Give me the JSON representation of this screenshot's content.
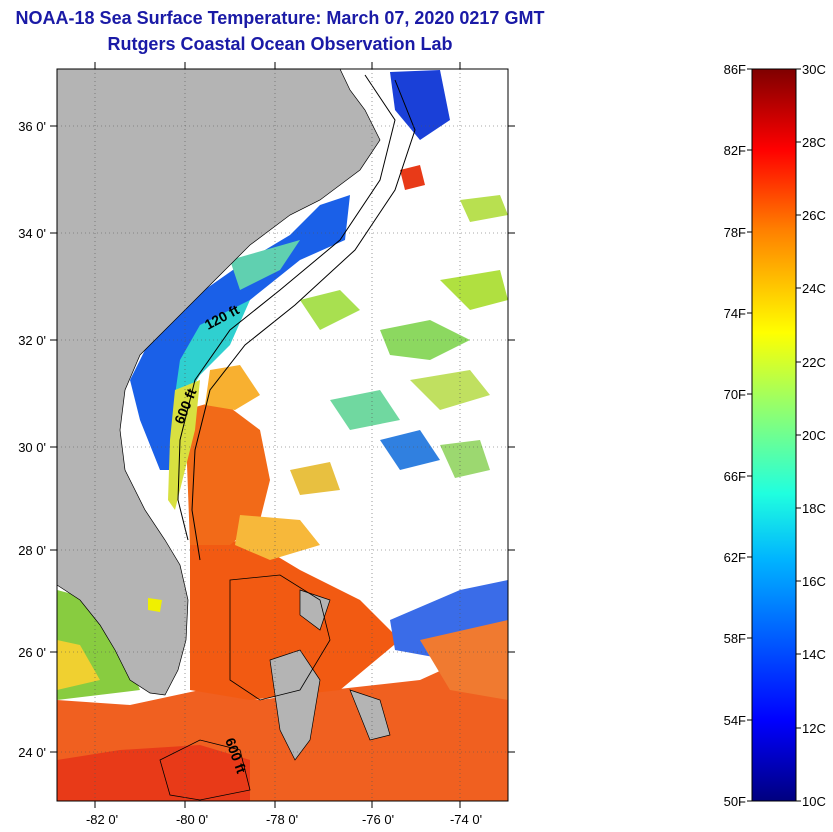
{
  "header": {
    "title": "NOAA-18 Sea Surface Temperature:  March 07, 2020 0217 GMT",
    "subtitle": "Rutgers Coastal Ocean Observation Lab"
  },
  "map": {
    "lat_ticks": [
      "36 0'",
      "34 0'",
      "32 0'",
      "30 0'",
      "28 0'",
      "26 0'",
      "24 0'"
    ],
    "lon_ticks": [
      "-82 0'",
      "-80 0'",
      "-78 0'",
      "-76 0'",
      "-74 0'"
    ],
    "contour_labels": [
      "120 ft",
      "600 ft",
      "600 ft"
    ],
    "colors": {
      "land": "#b4b4b4",
      "cloud": "#ffffff",
      "coastal_cold": "#1060e8",
      "gulf_stream": "#f05a10",
      "warm_red": "#e83010",
      "mid_green": "#80d040"
    }
  },
  "colorbar": {
    "fahrenheit_labels": [
      "86F",
      "82F",
      "78F",
      "74F",
      "70F",
      "66F",
      "62F",
      "58F",
      "54F",
      "50F"
    ],
    "celsius_labels": [
      "30C",
      "28C",
      "26C",
      "24C",
      "22C",
      "20C",
      "18C",
      "16C",
      "14C",
      "12C",
      "10C"
    ],
    "colors": [
      "#00007f",
      "#0000ff",
      "#007fff",
      "#00ffff",
      "#7fff7f",
      "#ffff00",
      "#ff7f00",
      "#ff0000",
      "#7f0000"
    ]
  }
}
